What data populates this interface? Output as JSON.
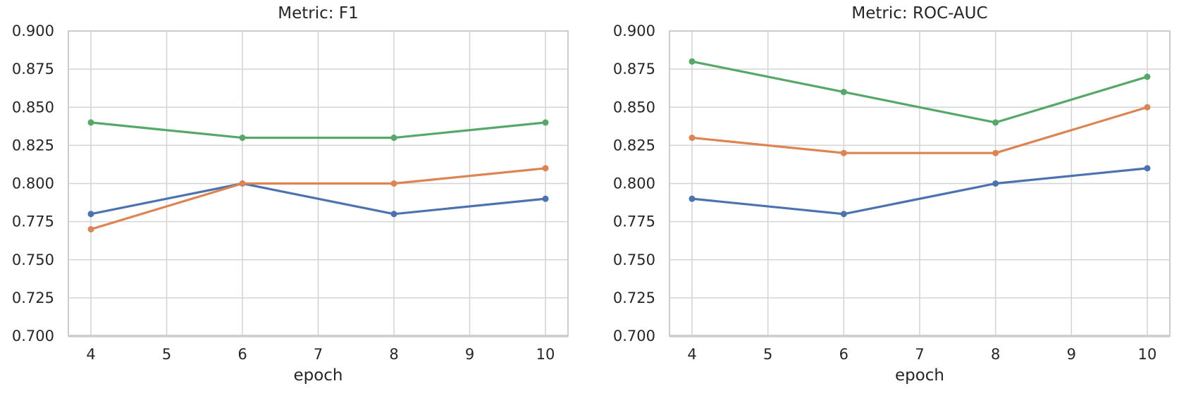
{
  "figure": {
    "background": "#ffffff"
  },
  "colors": {
    "grid": "#d5d5d5",
    "spine": "#cccccc",
    "text": "#262626",
    "series_blue": "#4C72B0",
    "series_orange": "#DD8452",
    "series_green": "#55A868"
  },
  "chart_data": [
    {
      "type": "line",
      "title": "Metric: F1",
      "xlabel": "epoch",
      "x": [
        4,
        6,
        8,
        10
      ],
      "xtick_labels": [
        "4",
        "5",
        "6",
        "7",
        "8",
        "9",
        "10"
      ],
      "ytick_labels": [
        "0.700",
        "0.725",
        "0.750",
        "0.775",
        "0.800",
        "0.825",
        "0.850",
        "0.875",
        "0.900"
      ],
      "ylim": [
        0.7,
        0.9
      ],
      "grid": true,
      "legend": "none",
      "markers": true,
      "series": [
        {
          "name": "blue",
          "color": "#4C72B0",
          "values": [
            0.78,
            0.8,
            0.78,
            0.79
          ]
        },
        {
          "name": "orange",
          "color": "#DD8452",
          "values": [
            0.77,
            0.8,
            0.8,
            0.81
          ]
        },
        {
          "name": "green",
          "color": "#55A868",
          "values": [
            0.84,
            0.83,
            0.83,
            0.84
          ]
        }
      ]
    },
    {
      "type": "line",
      "title": "Metric: ROC-AUC",
      "xlabel": "epoch",
      "x": [
        4,
        6,
        8,
        10
      ],
      "xtick_labels": [
        "4",
        "5",
        "6",
        "7",
        "8",
        "9",
        "10"
      ],
      "ytick_labels": [
        "0.700",
        "0.725",
        "0.750",
        "0.775",
        "0.800",
        "0.825",
        "0.850",
        "0.875",
        "0.900"
      ],
      "ylim": [
        0.7,
        0.9
      ],
      "grid": true,
      "legend": "none",
      "markers": true,
      "series": [
        {
          "name": "blue",
          "color": "#4C72B0",
          "values": [
            0.79,
            0.78,
            0.8,
            0.81
          ]
        },
        {
          "name": "orange",
          "color": "#DD8452",
          "values": [
            0.83,
            0.82,
            0.82,
            0.85
          ]
        },
        {
          "name": "green",
          "color": "#55A868",
          "values": [
            0.88,
            0.86,
            0.84,
            0.87
          ]
        }
      ]
    }
  ]
}
